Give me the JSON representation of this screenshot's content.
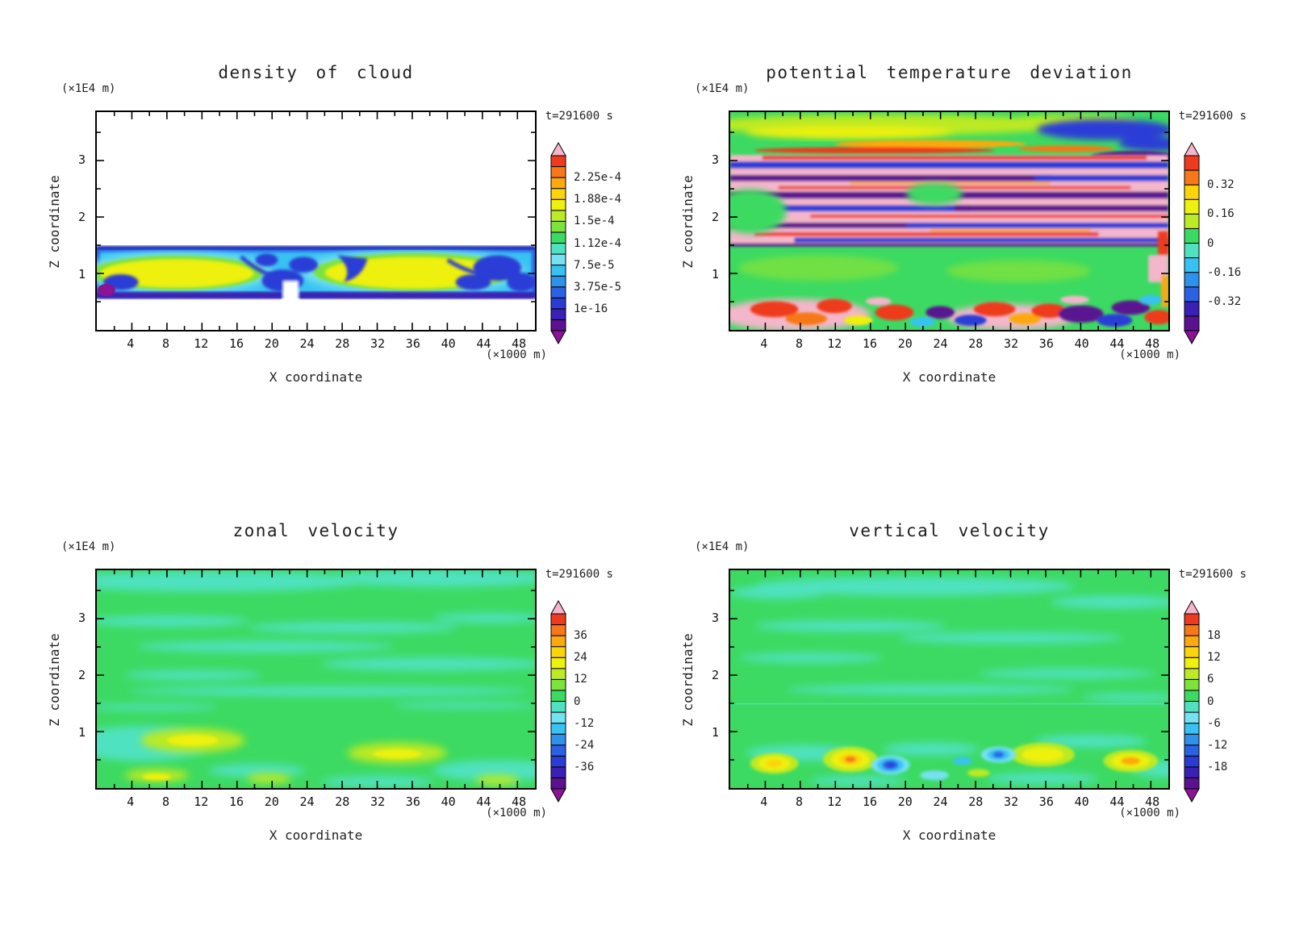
{
  "figure": {
    "time_label": "t=291600 s",
    "y_units_label": "(×1E4 m)",
    "x_units_label": "(×1000 m)",
    "x_axis_label": "X coordinate",
    "y_axis_label": "Z coordinate",
    "x_ticks": [
      4,
      8,
      12,
      16,
      20,
      24,
      28,
      32,
      36,
      40,
      44,
      48
    ],
    "z_ticks": [
      1,
      2,
      3
    ]
  },
  "panels": [
    {
      "id": "density-of-cloud",
      "title": "density of cloud",
      "colorbar_labels": [
        "2.25e-4",
        "1.88e-4",
        "1.5e-4",
        "1.12e-4",
        "7.5e-5",
        "3.75e-5",
        "1e-16"
      ]
    },
    {
      "id": "potential-temperature-deviation",
      "title": "potential temperature deviation",
      "colorbar_labels": [
        "0.32",
        "0.16",
        "0",
        "-0.16",
        "-0.32"
      ]
    },
    {
      "id": "zonal-velocity",
      "title": "zonal velocity",
      "colorbar_labels": [
        "36",
        "24",
        "12",
        "0",
        "-12",
        "-24",
        "-36"
      ]
    },
    {
      "id": "vertical-velocity",
      "title": "vertical velocity",
      "colorbar_labels": [
        "18",
        "12",
        "6",
        "0",
        "-6",
        "-12",
        "-18"
      ]
    }
  ],
  "palette": {
    "rainbow_low_to_high": [
      "#5a1290",
      "#3a20b4",
      "#2b3cd6",
      "#2b62e4",
      "#2e92ec",
      "#38c2f2",
      "#74e2f2",
      "#50e2c0",
      "#3cda62",
      "#7ee23c",
      "#bcea24",
      "#eef00e",
      "#fcd40a",
      "#fca810",
      "#f67818",
      "#ee3a1e"
    ],
    "under_arrow": "#8a1494",
    "over_arrow": "#f4b6ca",
    "zero_level_green": "#3cda62",
    "background": "#ffffff",
    "text": "#111111"
  },
  "chart_data": [
    {
      "type": "heatmap",
      "subtype": "filled-contour",
      "title": "density of cloud",
      "xlabel": "X coordinate (×1000 m)",
      "ylabel": "Z coordinate (×1E4 m)",
      "xlim": [
        0,
        50
      ],
      "ylim": [
        0,
        3.9
      ],
      "x_ticks": [
        4,
        8,
        12,
        16,
        20,
        24,
        28,
        32,
        36,
        40,
        44,
        48
      ],
      "y_ticks": [
        1,
        2,
        3
      ],
      "time_annotation": "t=291600 s",
      "colorbar": {
        "position": "right",
        "labels_top_to_bottom": [
          "2.25e-4",
          "1.88e-4",
          "1.5e-4",
          "1.12e-4",
          "7.5e-5",
          "3.75e-5",
          "1e-16"
        ]
      },
      "content_summary": "Cloud layer confined between z≈0.55 and z≈1.45 (×1E4 m) across all x; two yellow high-density cores (≈1.5e-4 to 2e-4) centered near x≈9 and x≈36 (×1000 m) with green/cyan surroundings and dark-blue low-density layer edges; zero (white) everywhere else."
    },
    {
      "type": "heatmap",
      "subtype": "filled-contour",
      "title": "potential temperature deviation",
      "xlabel": "X coordinate (×1000 m)",
      "ylabel": "Z coordinate (×1E4 m)",
      "xlim": [
        0,
        50
      ],
      "ylim": [
        0,
        3.9
      ],
      "x_ticks": [
        4,
        8,
        12,
        16,
        20,
        24,
        28,
        32,
        36,
        40,
        44,
        48
      ],
      "y_ticks": [
        1,
        2,
        3
      ],
      "time_annotation": "t=291600 s",
      "colorbar": {
        "position": "right",
        "labels_top_to_bottom": [
          "0.32",
          "0.16",
          "0",
          "-0.16",
          "-0.32"
        ]
      },
      "content_summary": "Background near 0 (green). Strongly layered deviations between z≈1.5 and z≈3.1: alternating positive bands (pink/red, ≥ +0.32) and negative bands (purple/navy, ≤ -0.32); yellow/orange streaks near z≈3.3-3.6 with navy/purple patches at top right; turbulent mixed cells below z≈0.7 with strong positive (pink/red/orange) and negative (purple/blue) anomalies."
    },
    {
      "type": "heatmap",
      "subtype": "filled-contour",
      "title": "zonal velocity",
      "xlabel": "X coordinate (×1000 m)",
      "ylabel": "Z coordinate (×1E4 m)",
      "xlim": [
        0,
        50
      ],
      "ylim": [
        0,
        3.9
      ],
      "x_ticks": [
        4,
        8,
        12,
        16,
        20,
        24,
        28,
        32,
        36,
        40,
        44,
        48
      ],
      "y_ticks": [
        1,
        2,
        3
      ],
      "time_annotation": "t=291600 s",
      "colorbar": {
        "position": "right",
        "labels_top_to_bottom": [
          "36",
          "24",
          "12",
          "0",
          "-12",
          "-24",
          "-36"
        ]
      },
      "content_summary": "Field mostly near zero: green (0 to +12) background with spring-green (-12 to 0) horizontal streaks aloft; weak positive patches up to ≈ +12-18 (yellow) near z≈0.5-1.0 around x≈8-16 and x≈32-40; magnitudes far below the ±36 colorbar extremes."
    },
    {
      "type": "heatmap",
      "subtype": "filled-contour",
      "title": "vertical velocity",
      "xlabel": "X coordinate (×1000 m)",
      "ylabel": "Z coordinate (×1E4 m)",
      "xlim": [
        0,
        50
      ],
      "ylim": [
        0,
        3.9
      ],
      "x_ticks": [
        4,
        8,
        12,
        16,
        20,
        24,
        28,
        32,
        36,
        40,
        44,
        48
      ],
      "y_ticks": [
        1,
        2,
        3
      ],
      "time_annotation": "t=291600 s",
      "colorbar": {
        "position": "right",
        "labels_top_to_bottom": [
          "18",
          "12",
          "6",
          "0",
          "-6",
          "-12",
          "-18"
        ]
      },
      "content_summary": "Near zero aloft (green with spring-green streaks). Below z≈1 alternating updraft cells (yellow/orange cores, up to ≈ +12-18) near x≈4, 13, 34-37 and 45, and downdraft cells (cyan/blue cores, down to ≈ -12-18) near x≈18, 22-31 and 33 (×1000 m)."
    }
  ]
}
